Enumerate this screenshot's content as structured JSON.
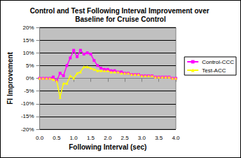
{
  "chart_data": {
    "type": "line",
    "title": "Control and Test Following Interval Improvement over Baseline for Cruise Control",
    "x_label": "Following Interval (sec)",
    "y_label": "FI Improvement",
    "x": [
      0,
      0.1,
      0.2,
      0.3,
      0.4,
      0.5,
      0.6,
      0.7,
      0.8,
      0.9,
      1,
      1.1,
      1.2,
      1.3,
      1.4,
      1.5,
      1.6,
      1.7,
      1.8,
      1.9,
      2,
      2.1,
      2.2,
      2.3,
      2.4,
      2.5,
      2.6,
      2.7,
      2.8,
      2.9,
      3,
      3.1,
      3.2,
      3.3,
      3.4,
      3.5,
      3.6,
      3.7,
      3.8,
      3.9,
      4
    ],
    "series": [
      {
        "name": "Control-CCC",
        "color": "#ff00ff",
        "marker": "square",
        "values": [
          0,
          0,
          0,
          0,
          0.5,
          -1,
          2,
          1,
          5,
          8,
          11,
          8.5,
          11,
          9.5,
          10,
          9.5,
          7,
          5,
          4,
          3.5,
          3.5,
          3,
          3,
          2.5,
          2.5,
          2,
          2,
          1.5,
          1.5,
          1.5,
          1,
          1,
          1,
          1,
          0.5,
          0.5,
          0.5,
          0.5,
          0.5,
          0,
          0
        ]
      },
      {
        "name": "Test-ACC",
        "color": "#ffff00",
        "marker": "triangle",
        "values": [
          0,
          0,
          0,
          0,
          -0.5,
          -1,
          -7.5,
          -2,
          -2,
          1,
          0,
          2,
          2.5,
          4.5,
          4.5,
          4,
          3.5,
          3,
          3,
          3,
          3,
          2.5,
          2.5,
          2.5,
          2,
          2,
          2,
          1.5,
          1.5,
          1.5,
          1,
          1,
          1,
          1,
          0.5,
          0.5,
          0.5,
          0.5,
          0.5,
          0,
          0
        ]
      }
    ],
    "xlim": [
      0,
      4
    ],
    "xticks": [
      {
        "value": 0,
        "label": "0.0"
      },
      0.5,
      {
        "value": 1,
        "label": "1.0"
      },
      1.5,
      {
        "value": 2,
        "label": "2.0"
      },
      2.5,
      {
        "value": 3,
        "label": "3.0"
      },
      3.5,
      {
        "value": 4,
        "label": "4.0"
      }
    ],
    "ylim": [
      -20,
      20
    ],
    "yticks": [
      {
        "value": -20,
        "label": "-20%"
      },
      {
        "value": -15,
        "label": "-15%"
      },
      {
        "value": -10,
        "label": "-10%"
      },
      {
        "value": -5,
        "label": "-5%"
      },
      {
        "value": 0,
        "label": "0%"
      },
      {
        "value": 5,
        "label": "5%"
      },
      {
        "value": 10,
        "label": "10%"
      },
      {
        "value": 15,
        "label": "15%"
      },
      {
        "value": 20,
        "label": "20%"
      }
    ],
    "grid": true,
    "legend": "right"
  }
}
